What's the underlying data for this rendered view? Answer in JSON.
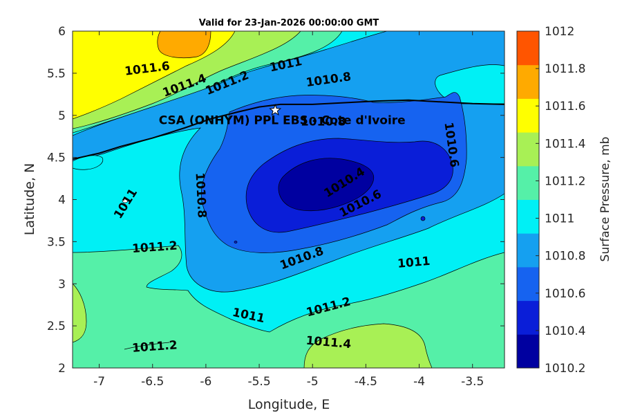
{
  "chart_data": {
    "type": "contour",
    "title": "Valid for 23-Jan-2026 00:00:00 GMT",
    "xlabel": "Longitude, E",
    "ylabel": "Latitude, N",
    "xlim": [
      -7.25,
      -3.2
    ],
    "ylim": [
      2,
      6
    ],
    "xticks": [
      "-7",
      "-6.5",
      "-6",
      "-5.5",
      "-5",
      "-4.5",
      "-4",
      "-3.5"
    ],
    "yticks": [
      "2",
      "2.5",
      "3",
      "3.5",
      "4",
      "4.5",
      "5",
      "5.5",
      "6"
    ],
    "colorbar": {
      "label": "Surface Pressure, mb",
      "levels": [
        "1010.2",
        "1010.4",
        "1010.6",
        "1010.8",
        "1011",
        "1011.2",
        "1011.4",
        "1011.6",
        "1011.8",
        "1012"
      ],
      "colors": [
        "#0000a0",
        "#0a1ed8",
        "#1663f0",
        "#15a0f0",
        "#00f0f5",
        "#55f0a8",
        "#a8f055",
        "#ffff00",
        "#ffaa00",
        "#ff5500"
      ]
    },
    "contour_labels": [
      {
        "text": "1011.6",
        "lon": -6.55,
        "lat": 5.55,
        "angle": -7
      },
      {
        "text": "1011.4",
        "lon": -6.2,
        "lat": 5.35,
        "angle": -20
      },
      {
        "text": "1011.2",
        "lon": -5.8,
        "lat": 5.38,
        "angle": -22
      },
      {
        "text": "1011",
        "lon": -5.25,
        "lat": 5.6,
        "angle": -12
      },
      {
        "text": "1010.8",
        "lon": -4.85,
        "lat": 5.42,
        "angle": -8
      },
      {
        "text": "1010.8",
        "lon": -6.05,
        "lat": 4.05,
        "angle": 87
      },
      {
        "text": "1010.4",
        "lon": -4.7,
        "lat": 4.2,
        "angle": -32
      },
      {
        "text": "1010.6",
        "lon": -4.55,
        "lat": 3.95,
        "angle": -27
      },
      {
        "text": "1010.6",
        "lon": -3.7,
        "lat": 4.65,
        "angle": 82
      },
      {
        "text": "1011",
        "lon": -6.75,
        "lat": 3.95,
        "angle": -58
      },
      {
        "text": "1011.2",
        "lon": -6.48,
        "lat": 3.43,
        "angle": -4
      },
      {
        "text": "1010.8",
        "lon": -5.1,
        "lat": 3.3,
        "angle": -20
      },
      {
        "text": "1011",
        "lon": -4.05,
        "lat": 3.25,
        "angle": -5
      },
      {
        "text": "1011",
        "lon": -5.6,
        "lat": 2.62,
        "angle": 12
      },
      {
        "text": "1011.2",
        "lon": -4.85,
        "lat": 2.72,
        "angle": -15
      },
      {
        "text": "1011.2",
        "lon": -6.48,
        "lat": 2.25,
        "angle": -4
      },
      {
        "text": "1011.4",
        "lon": -4.85,
        "lat": 2.3,
        "angle": 5
      },
      {
        "text": "1010.8",
        "lon": -4.9,
        "lat": 4.92,
        "angle": 0
      }
    ],
    "location": {
      "name": "CSA (ONHYM) PPL EBS - Cote d'Ivoire",
      "lon": -5.35,
      "lat": 5.06,
      "marker": "star"
    },
    "coastline": [
      [
        -7.25,
        4.48
      ],
      [
        -7.0,
        4.55
      ],
      [
        -6.8,
        4.63
      ],
      [
        -6.5,
        4.73
      ],
      [
        -6.2,
        4.85
      ],
      [
        -5.95,
        4.96
      ],
      [
        -5.7,
        5.04
      ],
      [
        -5.5,
        5.1
      ],
      [
        -5.3,
        5.13
      ],
      [
        -5.0,
        5.13
      ],
      [
        -4.7,
        5.15
      ],
      [
        -4.4,
        5.17
      ],
      [
        -4.1,
        5.18
      ],
      [
        -3.8,
        5.16
      ],
      [
        -3.5,
        5.14
      ],
      [
        -3.2,
        5.13
      ]
    ]
  }
}
